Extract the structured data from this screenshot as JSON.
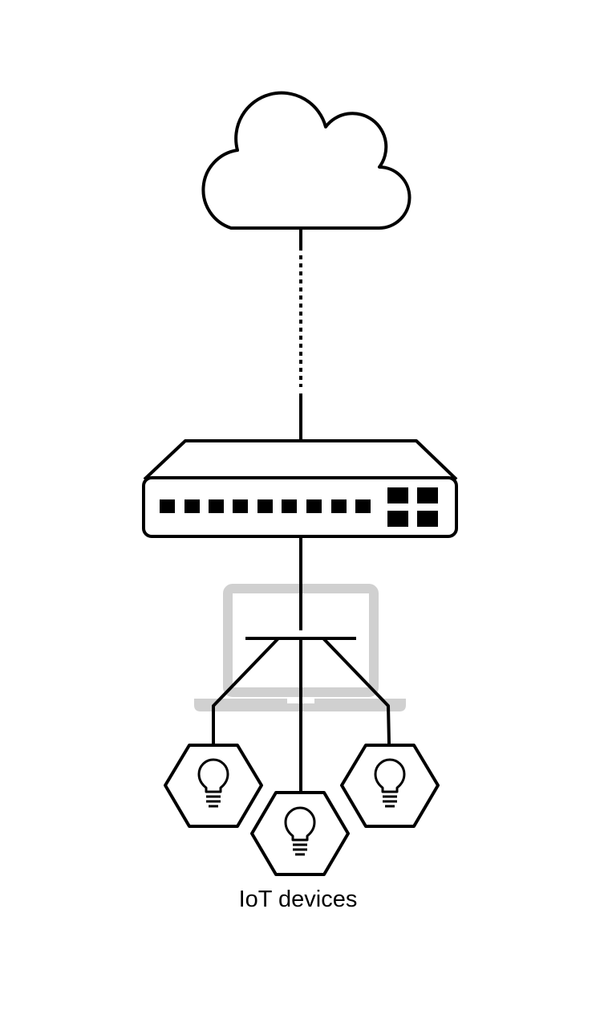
{
  "caption": "IoT devices",
  "nodes": {
    "cloud": "internet-cloud",
    "switch": "network-switch",
    "laptop": "laptop-background",
    "devices": [
      "iot-device-left",
      "iot-device-center",
      "iot-device-right"
    ]
  },
  "colors": {
    "line": "#000000",
    "laptop": "#d0d0d0",
    "background": "#ffffff"
  }
}
